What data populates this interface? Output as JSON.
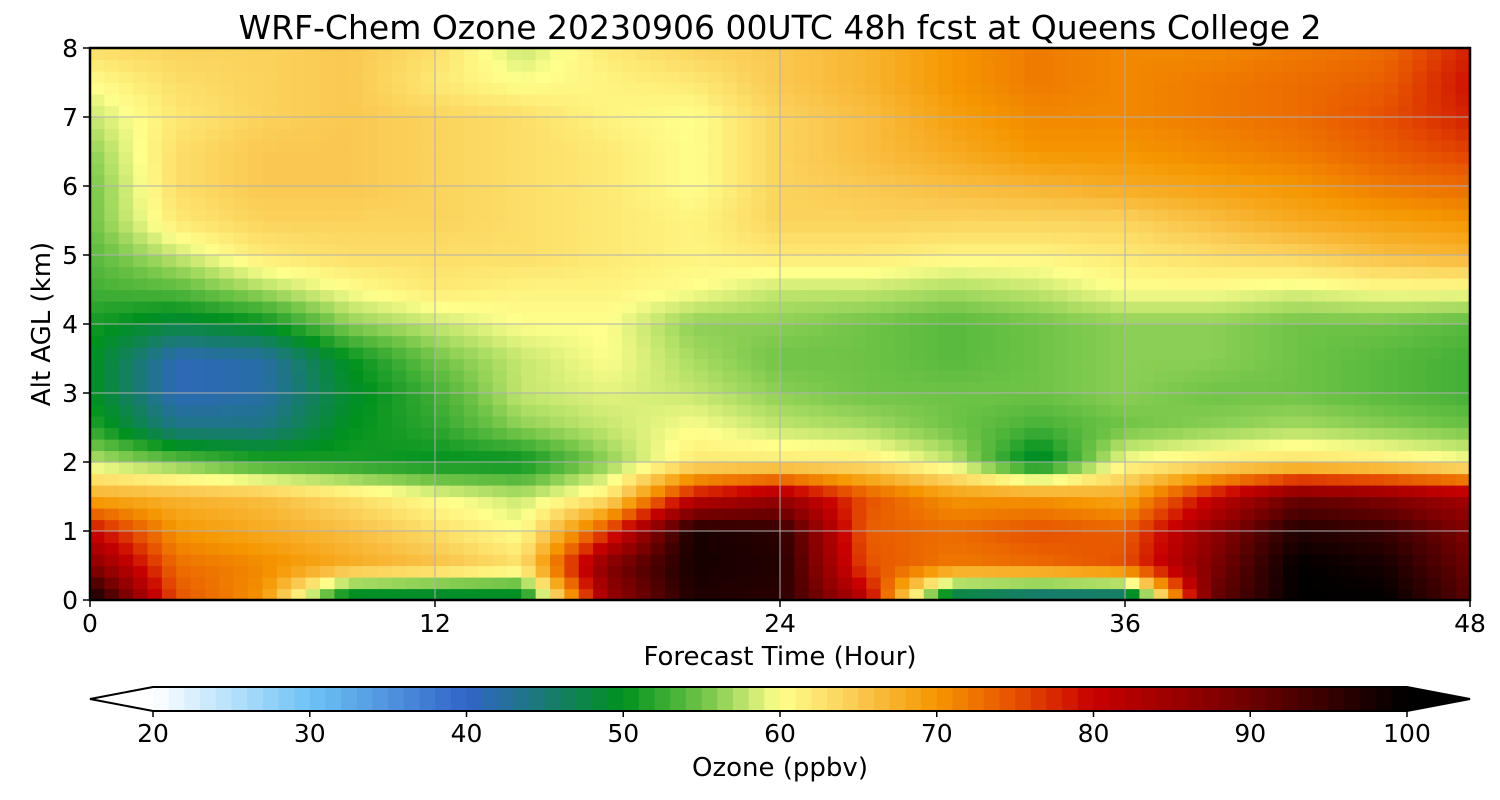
{
  "chart_data": {
    "type": "heatmap",
    "title": "WRF-Chem Ozone  20230906 00UTC 48h fcst at Queens College 2",
    "xlabel": "Forecast Time (Hour)",
    "ylabel": "Alt AGL (km)",
    "xlim": [
      0,
      48
    ],
    "ylim": [
      0,
      8
    ],
    "xticks": [
      0,
      12,
      24,
      36,
      48
    ],
    "yticks": [
      0,
      1,
      2,
      3,
      4,
      5,
      6,
      7,
      8
    ],
    "grid": true,
    "x_hours": [
      0,
      3,
      6,
      9,
      12,
      15,
      18,
      21,
      24,
      27,
      30,
      33,
      36,
      39,
      42,
      45,
      48
    ],
    "z_km": [
      0,
      0.5,
      1,
      1.5,
      2,
      2.5,
      3,
      3.5,
      4,
      4.5,
      5,
      5.5,
      6,
      6.5,
      7,
      7.5,
      8
    ],
    "ozone_ppbv": [
      [
        100,
        75,
        70,
        46,
        46,
        47,
        85,
        97,
        96,
        82,
        43,
        40,
        40,
        90,
        100,
        100,
        92
      ],
      [
        88,
        73,
        71,
        68,
        66,
        63,
        88,
        98,
        97,
        75,
        72,
        73,
        75,
        88,
        100,
        98,
        90
      ],
      [
        80,
        70,
        68,
        66,
        63,
        60,
        76,
        98,
        96,
        74,
        73,
        75,
        74,
        86,
        97,
        95,
        88
      ],
      [
        68,
        67,
        66,
        63,
        60,
        58,
        62,
        80,
        85,
        75,
        70,
        70,
        68,
        80,
        90,
        88,
        84
      ],
      [
        58,
        55,
        52,
        51,
        50,
        50,
        56,
        62,
        62,
        62,
        58,
        48,
        60,
        62,
        63,
        62,
        60
      ],
      [
        52,
        44,
        44,
        50,
        52,
        56,
        58,
        60,
        58,
        57,
        55,
        53,
        55,
        56,
        57,
        56,
        55
      ],
      [
        50,
        41,
        42,
        49,
        53,
        58,
        59,
        58,
        56,
        55,
        55,
        55,
        56,
        55,
        55,
        54,
        53
      ],
      [
        50,
        41,
        42,
        50,
        55,
        58,
        60,
        57,
        55,
        55,
        54,
        55,
        56,
        56,
        55,
        54,
        53
      ],
      [
        51,
        48,
        50,
        56,
        58,
        60,
        60,
        56,
        56,
        55,
        54,
        55,
        56,
        56,
        55,
        55,
        54
      ],
      [
        53,
        54,
        57,
        60,
        62,
        61,
        61,
        60,
        58,
        58,
        57,
        58,
        60,
        60,
        59,
        60,
        60
      ],
      [
        54,
        58,
        62,
        63,
        63,
        63,
        62,
        61,
        62,
        62,
        61,
        61,
        62,
        63,
        64,
        66,
        67
      ],
      [
        55,
        62,
        64,
        64,
        64,
        63,
        62,
        61,
        64,
        64,
        64,
        64,
        64,
        66,
        68,
        69,
        70
      ],
      [
        55,
        63,
        65,
        65,
        64,
        63,
        62,
        60,
        64,
        65,
        66,
        67,
        68,
        69,
        70,
        72,
        73
      ],
      [
        56,
        63,
        65,
        65,
        64,
        63,
        62,
        60,
        64,
        66,
        68,
        70,
        70,
        71,
        72,
        74,
        76
      ],
      [
        58,
        62,
        64,
        65,
        64,
        63,
        61,
        60,
        64,
        66,
        69,
        71,
        71,
        72,
        73,
        75,
        78
      ],
      [
        60,
        63,
        64,
        65,
        62,
        60,
        61,
        62,
        65,
        67,
        70,
        72,
        71,
        72,
        73,
        74,
        79
      ],
      [
        63,
        64,
        64,
        65,
        63,
        58,
        62,
        64,
        65,
        67,
        70,
        72,
        71,
        71,
        72,
        73,
        78
      ]
    ],
    "colorbar": {
      "label": "Ozone  (ppbv)",
      "min": 20,
      "max": 100,
      "ticks": [
        20,
        30,
        40,
        50,
        60,
        70,
        80,
        90,
        100
      ],
      "extend": "both"
    }
  }
}
